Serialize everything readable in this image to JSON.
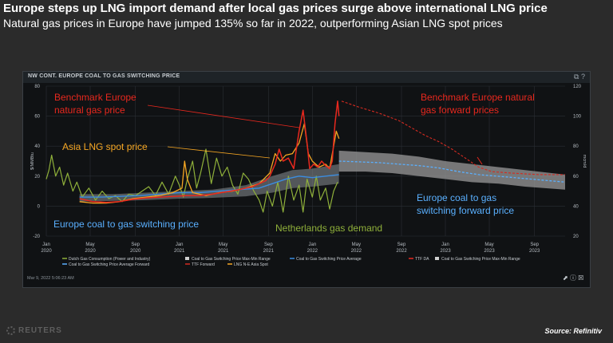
{
  "headline": "Europe steps up LNG import demand after local gas prices surge above international LNG price",
  "subhead": "Natural gas prices in Europe have jumped 135% so far in 2022, outperforming Asian LNG spot prices",
  "panel_title": "NW CONT. EUROPE COAL TO GAS SWITCHING PRICE",
  "timestamp": "Mar 9, 2022 5:06:23 AM",
  "reuters": "REUTERS",
  "source": "Source: Refinitiv",
  "icons": {
    "panel": [
      "popout-icon",
      "help-icon"
    ],
    "footer": [
      "export-icon",
      "info-icon",
      "close-icon"
    ]
  },
  "colors": {
    "ttf": "#e8281e",
    "lng_asia": "#f5a623",
    "coal_switch": "#3b8de0",
    "dutch_demand": "#8fb03a",
    "range": "#c8c8c8",
    "forward_ttf": "#d42a20",
    "forward_coal": "#5ab0ff"
  },
  "annotations": {
    "benchmark_europe": [
      "Benchmark Europe",
      "natural gas price"
    ],
    "asia_lng": "Asia LNG spot price",
    "forward_europe": [
      "Benchmark Europe natural",
      "gas forward prices"
    ],
    "europe_switch": "Europe coal to gas switching price",
    "netherlands": "Netherlands gas demand",
    "forward_switch": [
      "Europe coal to gas",
      "switching forward price"
    ]
  },
  "chart_data": {
    "type": "line",
    "title": "NW CONT. EUROPE COAL TO GAS SWITCHING PRICE",
    "ylabel": "$/MMBtu",
    "y2label": "mcm/d",
    "ylim": [
      -20,
      80
    ],
    "y2lim": [
      20,
      120
    ],
    "yticks": [
      "80",
      "60",
      "40",
      "20",
      "0",
      "-20"
    ],
    "y2ticks": [
      "120",
      "100",
      "80",
      "60",
      "40",
      "20"
    ],
    "xlim": [
      "2020-01",
      "2023-12"
    ],
    "xticks": [
      {
        "t": 2020.0,
        "label": [
          "Jan",
          "2020"
        ]
      },
      {
        "t": 2020.33,
        "label": [
          "May",
          "2020"
        ]
      },
      {
        "t": 2020.67,
        "label": [
          "Sep",
          "2020"
        ]
      },
      {
        "t": 2021.0,
        "label": [
          "Jan",
          "2021"
        ]
      },
      {
        "t": 2021.33,
        "label": [
          "May",
          "2021"
        ]
      },
      {
        "t": 2021.67,
        "label": [
          "Sep",
          "2021"
        ]
      },
      {
        "t": 2022.0,
        "label": [
          "Jan",
          "2022"
        ]
      },
      {
        "t": 2022.33,
        "label": [
          "May",
          "2022"
        ]
      },
      {
        "t": 2022.67,
        "label": [
          "Sep",
          "2022"
        ]
      },
      {
        "t": 2023.0,
        "label": [
          "Jan",
          "2023"
        ]
      },
      {
        "t": 2023.33,
        "label": [
          "May",
          "2023"
        ]
      },
      {
        "t": 2023.67,
        "label": [
          "Sep",
          "2023"
        ]
      }
    ],
    "grid": true,
    "legend_position": "bottom",
    "legend": [
      "Dutch Gas Consumption (Power and Industry)",
      "Coal to Gas Switching Price Max-Min Range",
      "Coal to Gas Switching Price Average",
      "TTF DA",
      "Coal to Gas Switching Price Max-Min Range",
      "Coal to Gas Switching Price Average Forward",
      "TTF Forward",
      "LNG N-E Asia Spot"
    ],
    "series": [
      {
        "name": "TTF DA",
        "axis": "left",
        "points": [
          [
            2020.25,
            5
          ],
          [
            2020.35,
            3
          ],
          [
            2020.45,
            2.5
          ],
          [
            2020.55,
            3
          ],
          [
            2020.65,
            4.5
          ],
          [
            2020.75,
            5.5
          ],
          [
            2020.85,
            6
          ],
          [
            2020.95,
            6.5
          ],
          [
            2021.05,
            7
          ],
          [
            2021.15,
            7
          ],
          [
            2021.25,
            8
          ],
          [
            2021.35,
            9.5
          ],
          [
            2021.45,
            11
          ],
          [
            2021.55,
            13
          ],
          [
            2021.6,
            15
          ],
          [
            2021.65,
            17
          ],
          [
            2021.68,
            20
          ],
          [
            2021.72,
            28
          ],
          [
            2021.75,
            38
          ],
          [
            2021.78,
            30
          ],
          [
            2021.82,
            32
          ],
          [
            2021.86,
            25
          ],
          [
            2021.88,
            38
          ],
          [
            2021.9,
            50
          ],
          [
            2021.93,
            64
          ],
          [
            2021.96,
            42
          ],
          [
            2021.98,
            25
          ],
          [
            2022.01,
            28
          ],
          [
            2022.04,
            26
          ],
          [
            2022.07,
            30
          ],
          [
            2022.1,
            27
          ],
          [
            2022.13,
            25
          ],
          [
            2022.15,
            30
          ],
          [
            2022.17,
            55
          ],
          [
            2022.19,
            70
          ],
          [
            2022.2,
            60
          ]
        ]
      },
      {
        "name": "LNG N-E Asia Spot",
        "axis": "left",
        "points": [
          [
            2020.25,
            3
          ],
          [
            2020.35,
            2
          ],
          [
            2020.45,
            2
          ],
          [
            2020.55,
            3
          ],
          [
            2020.65,
            5
          ],
          [
            2020.75,
            6
          ],
          [
            2020.85,
            7
          ],
          [
            2020.95,
            9
          ],
          [
            2021.02,
            12
          ],
          [
            2021.04,
            30
          ],
          [
            2021.06,
            18
          ],
          [
            2021.1,
            9
          ],
          [
            2021.2,
            7
          ],
          [
            2021.3,
            9
          ],
          [
            2021.4,
            10
          ],
          [
            2021.5,
            12
          ],
          [
            2021.6,
            15
          ],
          [
            2021.68,
            22
          ],
          [
            2021.72,
            35
          ],
          [
            2021.76,
            30
          ],
          [
            2021.8,
            34
          ],
          [
            2021.85,
            35
          ],
          [
            2021.9,
            42
          ],
          [
            2021.94,
            55
          ],
          [
            2021.97,
            35
          ],
          [
            2022.0,
            30
          ],
          [
            2022.05,
            26
          ],
          [
            2022.1,
            28
          ],
          [
            2022.13,
            25
          ],
          [
            2022.16,
            40
          ],
          [
            2022.18,
            50
          ],
          [
            2022.2,
            45
          ]
        ]
      },
      {
        "name": "Coal to Gas Switching Price Average",
        "axis": "left",
        "points": [
          [
            2020.25,
            6
          ],
          [
            2020.4,
            6
          ],
          [
            2020.55,
            6.5
          ],
          [
            2020.7,
            7
          ],
          [
            2020.85,
            8
          ],
          [
            2021.0,
            9
          ],
          [
            2021.15,
            9
          ],
          [
            2021.3,
            10
          ],
          [
            2021.45,
            11
          ],
          [
            2021.6,
            12
          ],
          [
            2021.7,
            15
          ],
          [
            2021.8,
            18
          ],
          [
            2021.9,
            20
          ],
          [
            2022.0,
            19
          ],
          [
            2022.1,
            20
          ],
          [
            2022.2,
            21
          ]
        ]
      },
      {
        "name": "Dutch Gas Consumption (Power and Industry)",
        "axis": "right",
        "points": [
          [
            2020.0,
            58
          ],
          [
            2020.02,
            64
          ],
          [
            2020.04,
            74
          ],
          [
            2020.07,
            60
          ],
          [
            2020.1,
            66
          ],
          [
            2020.13,
            54
          ],
          [
            2020.16,
            62
          ],
          [
            2020.2,
            50
          ],
          [
            2020.23,
            56
          ],
          [
            2020.27,
            46
          ],
          [
            2020.32,
            52
          ],
          [
            2020.37,
            44
          ],
          [
            2020.42,
            50
          ],
          [
            2020.47,
            45
          ],
          [
            2020.52,
            47
          ],
          [
            2020.57,
            43
          ],
          [
            2020.62,
            48
          ],
          [
            2020.67,
            47
          ],
          [
            2020.72,
            50
          ],
          [
            2020.77,
            53
          ],
          [
            2020.82,
            47
          ],
          [
            2020.87,
            56
          ],
          [
            2020.92,
            48
          ],
          [
            2020.97,
            60
          ],
          [
            2021.0,
            54
          ],
          [
            2021.03,
            46
          ],
          [
            2021.06,
            58
          ],
          [
            2021.1,
            70
          ],
          [
            2021.13,
            52
          ],
          [
            2021.16,
            62
          ],
          [
            2021.2,
            78
          ],
          [
            2021.24,
            55
          ],
          [
            2021.28,
            72
          ],
          [
            2021.32,
            60
          ],
          [
            2021.36,
            66
          ],
          [
            2021.4,
            54
          ],
          [
            2021.44,
            48
          ],
          [
            2021.48,
            62
          ],
          [
            2021.52,
            58
          ],
          [
            2021.56,
            50
          ],
          [
            2021.6,
            44
          ],
          [
            2021.63,
            36
          ],
          [
            2021.66,
            50
          ],
          [
            2021.7,
            40
          ],
          [
            2021.74,
            56
          ],
          [
            2021.78,
            36
          ],
          [
            2021.82,
            60
          ],
          [
            2021.86,
            44
          ],
          [
            2021.9,
            54
          ],
          [
            2021.93,
            36
          ],
          [
            2021.96,
            58
          ],
          [
            2022.0,
            46
          ],
          [
            2022.03,
            60
          ],
          [
            2022.06,
            44
          ],
          [
            2022.1,
            52
          ],
          [
            2022.13,
            38
          ],
          [
            2022.16,
            50
          ],
          [
            2022.19,
            56
          ]
        ]
      },
      {
        "name": "TTF Forward",
        "axis": "left",
        "points": [
          [
            2022.22,
            70
          ],
          [
            2022.35,
            66
          ],
          [
            2022.5,
            62
          ],
          [
            2022.65,
            57
          ],
          [
            2022.75,
            52
          ],
          [
            2022.85,
            47
          ],
          [
            2022.95,
            43
          ],
          [
            2023.05,
            38
          ],
          [
            2023.15,
            32
          ],
          [
            2023.25,
            26
          ],
          [
            2023.35,
            23
          ],
          [
            2023.5,
            22
          ],
          [
            2023.7,
            21
          ],
          [
            2023.9,
            21
          ]
        ]
      },
      {
        "name": "Coal to Gas Switching Price Average Forward",
        "axis": "left",
        "points": [
          [
            2022.2,
            30
          ],
          [
            2022.35,
            29.5
          ],
          [
            2022.5,
            29
          ],
          [
            2022.65,
            28
          ],
          [
            2022.8,
            27
          ],
          [
            2022.95,
            25.5
          ],
          [
            2023.1,
            23
          ],
          [
            2023.25,
            21
          ],
          [
            2023.45,
            19.5
          ],
          [
            2023.65,
            18
          ],
          [
            2023.9,
            16
          ]
        ]
      },
      {
        "name": "Coal to Gas Switching Price Max-Min Range",
        "axis": "left",
        "band": true,
        "points": [
          [
            2020.25,
            8,
            3
          ],
          [
            2020.5,
            8,
            3.5
          ],
          [
            2020.75,
            9,
            4
          ],
          [
            2021.0,
            10,
            5
          ],
          [
            2021.25,
            11,
            5.5
          ],
          [
            2021.5,
            14,
            6.5
          ],
          [
            2021.7,
            20,
            9
          ],
          [
            2021.85,
            24,
            12
          ],
          [
            2022.0,
            25,
            13
          ],
          [
            2022.2,
            28,
            15
          ]
        ]
      },
      {
        "name": "Coal to Gas Switching Price Max-Min Range",
        "axis": "left",
        "band": true,
        "forward": true,
        "points": [
          [
            2022.2,
            37,
            23
          ],
          [
            2022.4,
            36,
            23
          ],
          [
            2022.6,
            35,
            22
          ],
          [
            2022.8,
            33,
            20
          ],
          [
            2023.0,
            30,
            18
          ],
          [
            2023.2,
            28,
            16
          ],
          [
            2023.4,
            26,
            15
          ],
          [
            2023.6,
            24,
            13
          ],
          [
            2023.9,
            21,
            11
          ]
        ]
      }
    ]
  }
}
